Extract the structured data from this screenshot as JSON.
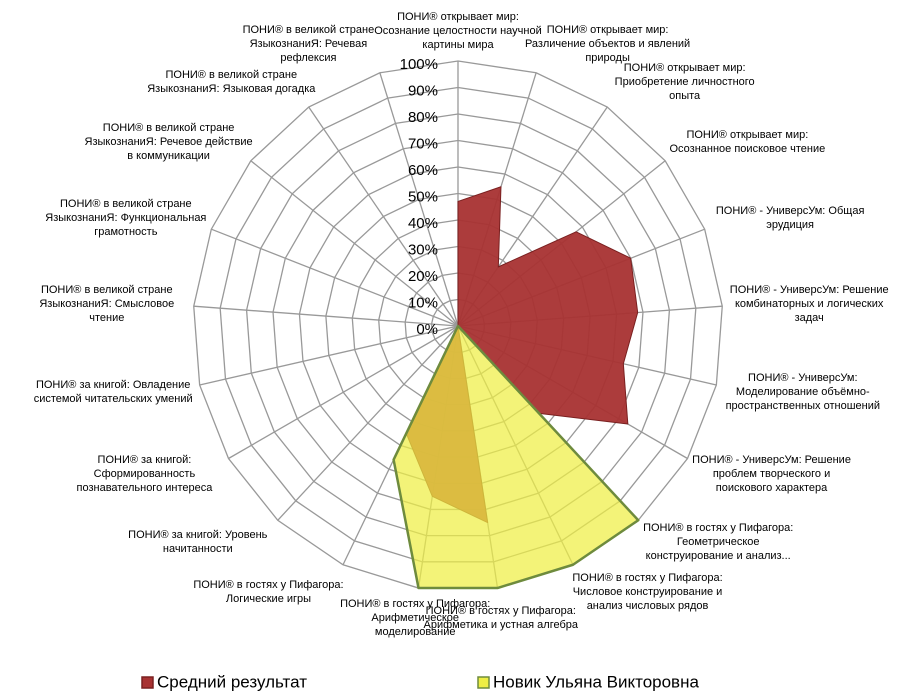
{
  "chart_data": {
    "type": "radar",
    "categories": [
      "ПОНИ® открывает мир: Осознание целостности научной картины мира",
      "ПОНИ® открывает мир: Различение объектов и явлений природы",
      "ПОНИ® открывает мир: Приобретение личностного опыта",
      "ПОНИ® открывает мир: Осознанное поисковое чтение",
      "ПОНИ® - УниверсУм: Общая эрудиция",
      "ПОНИ® - УниверсУм: Решение комбинаторных и логических задач",
      "ПОНИ® - УниверсУм: Моделирование объёмно-пространственных отношений",
      "ПОНИ® - УниверсУм: Решение проблем творческого и поискового характера",
      "ПОНИ® в гостях у Пифагора: Геометрическое конструирование и анализ...",
      "ПОНИ® в гостях у Пифагора: Числовое конструирование и анализ числовых рядов",
      "ПОНИ® в гостях у Пифагора: Арифметика и устная алгебра",
      "ПОНИ® в гостях у Пифагора: Арифметическое моделирование",
      "ПОНИ® в гостях у Пифагора: Логические игры",
      "ПОНИ® за книгой: Уровень начитанности",
      "ПОНИ® за книгой: Сформированность познавательного интереса",
      "ПОНИ® за книгой: Овладение системой читательских умений",
      "ПОНИ® в великой стране ЯзыкознаниЯ: Смысловое чтение",
      "ПОНИ® в великой стране ЯзыкознаниЯ: Функциональная грамотность",
      "ПОНИ® в великой стране ЯзыкознаниЯ: Речевое действие в коммуникации",
      "ПОНИ® в великой стране ЯзыкознаниЯ: Языковая догадка",
      "ПОНИ® в великой стране ЯзыкознаниЯ: Речевая рефлексия"
    ],
    "series": [
      {
        "name": "Средний результат",
        "color": "#a83232",
        "values": [
          47,
          55,
          27,
          57,
          70,
          68,
          64,
          74,
          45,
          0,
          75,
          65,
          45,
          0,
          0,
          0,
          0,
          0,
          0,
          0,
          0
        ]
      },
      {
        "name": "Новик Ульяна Викторовна",
        "color": "#eeee44",
        "values": [
          0,
          0,
          0,
          0,
          0,
          0,
          0,
          0,
          100,
          100,
          100,
          100,
          56,
          0,
          0,
          0,
          0,
          0,
          0,
          0,
          0
        ]
      }
    ],
    "ylim": [
      0,
      100
    ],
    "yticks": [
      {
        "value": 0,
        "label": "0%"
      },
      {
        "value": 10,
        "label": "10%"
      },
      {
        "value": 20,
        "label": "20%"
      },
      {
        "value": 30,
        "label": "30%"
      },
      {
        "value": 40,
        "label": "40%"
      },
      {
        "value": 50,
        "label": "50%"
      },
      {
        "value": 60,
        "label": "60%"
      },
      {
        "value": 70,
        "label": "70%"
      },
      {
        "value": 80,
        "label": "80%"
      },
      {
        "value": 90,
        "label": "90%"
      },
      {
        "value": 100,
        "label": "100%"
      }
    ],
    "grid": true,
    "legend": "bottom"
  }
}
